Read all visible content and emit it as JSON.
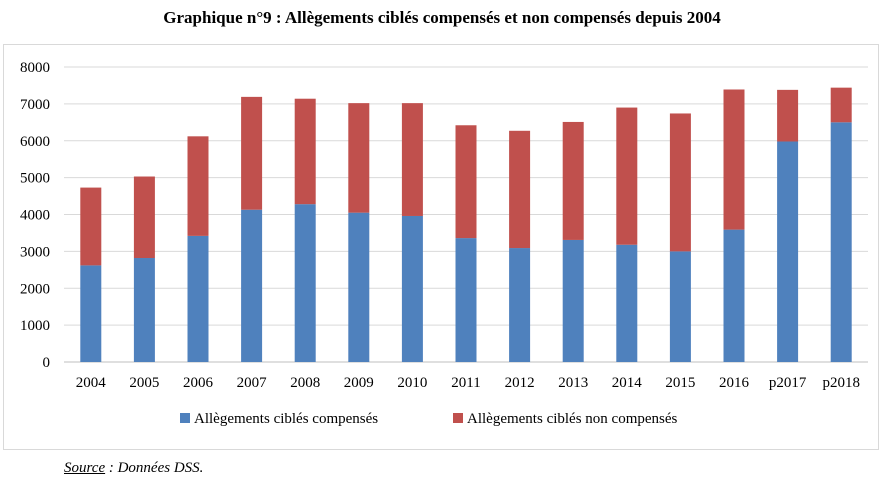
{
  "chart_data": {
    "type": "bar",
    "stacked": true,
    "title": "Graphique n°9 : Allègements ciblés compensés et non compensés depuis 2004",
    "categories": [
      "2004",
      "2005",
      "2006",
      "2007",
      "2008",
      "2009",
      "2010",
      "2011",
      "2012",
      "2013",
      "2014",
      "2015",
      "2016",
      "p2017",
      "p2018"
    ],
    "series": [
      {
        "name": "Allègements ciblés compensés",
        "color": "#4f81bd",
        "values": [
          2620,
          2820,
          3420,
          4130,
          4280,
          4050,
          3960,
          3360,
          3090,
          3310,
          3180,
          3000,
          3590,
          5980,
          6500
        ]
      },
      {
        "name": "Allègements ciblés non compensés",
        "color": "#c0504d",
        "values": [
          2110,
          2210,
          2700,
          3060,
          2860,
          2970,
          3060,
          3060,
          3180,
          3200,
          3720,
          3740,
          3800,
          1400,
          940
        ]
      }
    ],
    "ylim": [
      0,
      8000
    ],
    "yticks": [
      0,
      1000,
      2000,
      3000,
      4000,
      5000,
      6000,
      7000,
      8000
    ],
    "grid": true,
    "legend_position": "bottom"
  },
  "source": {
    "label": "Source",
    "text": " : Données DSS."
  }
}
